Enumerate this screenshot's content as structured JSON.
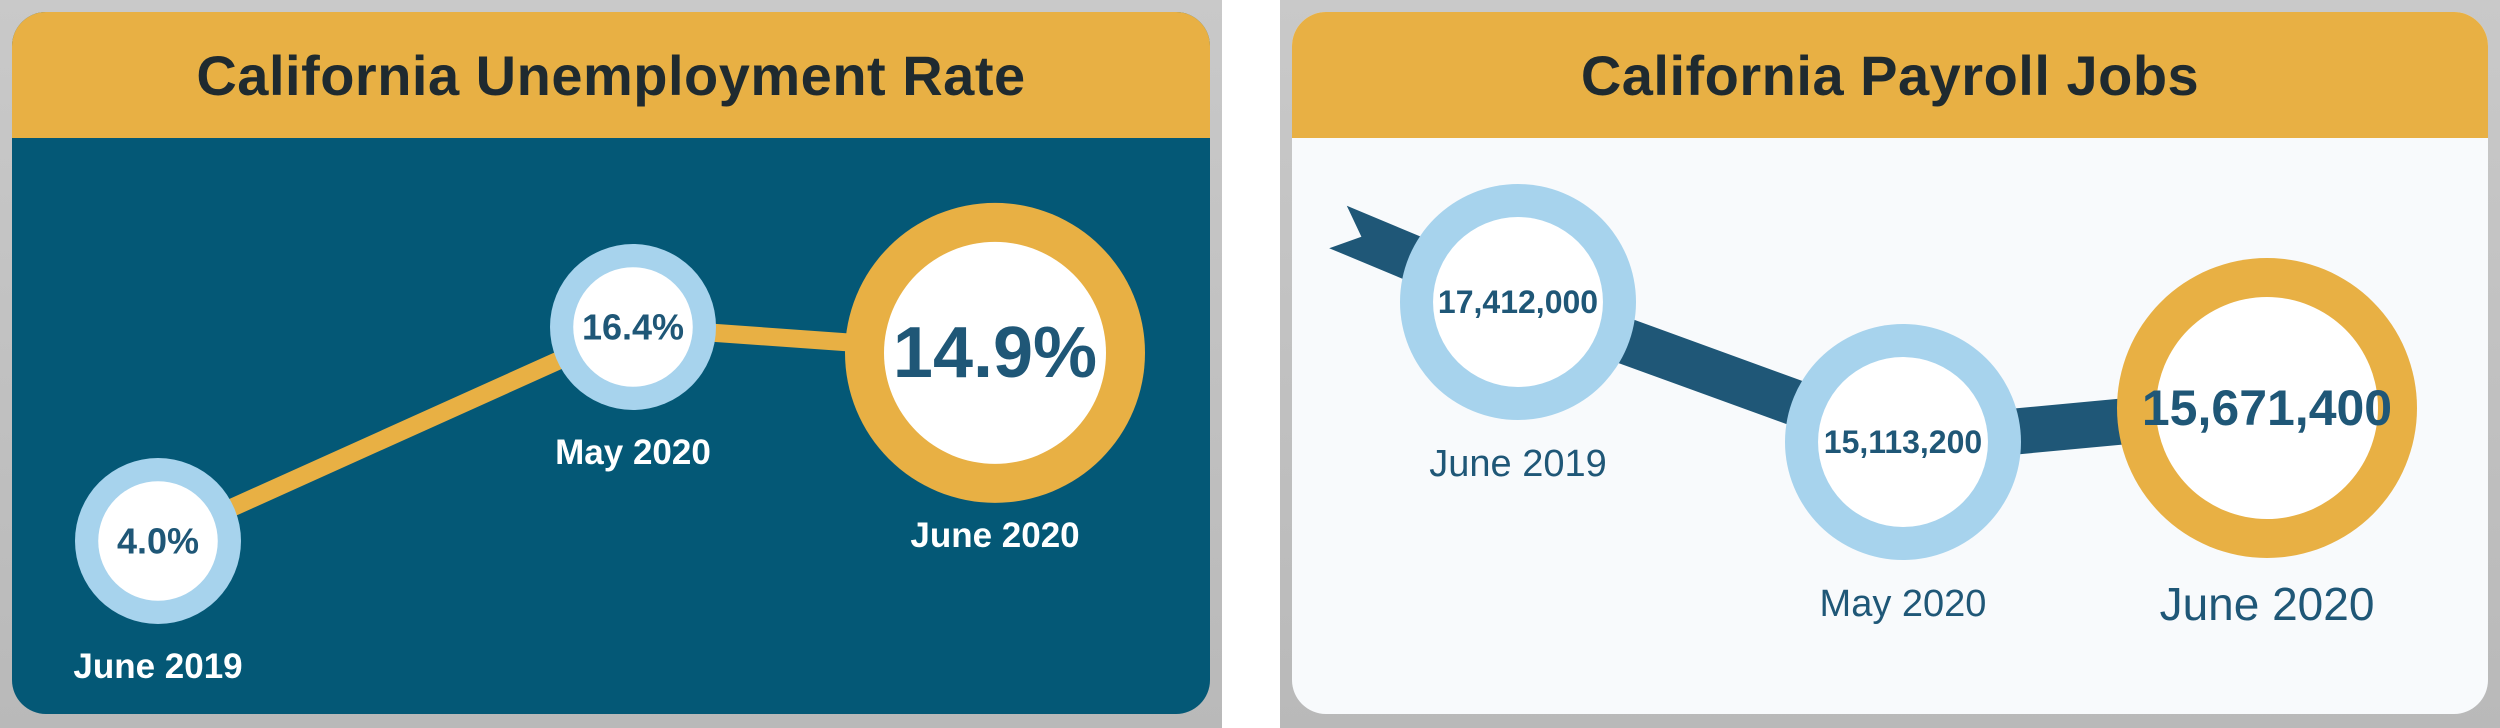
{
  "colors": {
    "panel_dark": "#045876",
    "panel_light": "#f8fafc",
    "title_bar": "#e8b044",
    "title_text": "#1f2a2f",
    "ring_past": "#a7d3ed",
    "ring_current": "#e8b044",
    "value_text": "#1f5777",
    "arrow_gold": "#e8b044",
    "arrow_blue": "#1f5777",
    "label_white": "#ffffff"
  },
  "chart_data": [
    {
      "type": "line",
      "title": "California Unemployment Rate",
      "x": [
        "June 2019",
        "May 2020",
        "June 2020"
      ],
      "series": [
        {
          "values": [
            4.0,
            16.4,
            14.9
          ],
          "labels": [
            "4.0%",
            "16.4%",
            "14.9%"
          ]
        }
      ],
      "highlight": "June 2020"
    },
    {
      "type": "line",
      "title": "California Payroll Jobs",
      "x": [
        "June 2019",
        "May 2020",
        "June 2020"
      ],
      "series": [
        {
          "values": [
            17412000,
            15113200,
            15671400
          ],
          "labels": [
            "17,412,000",
            "15,113,200",
            "15,671,400"
          ]
        }
      ],
      "highlight": "June 2020"
    }
  ]
}
